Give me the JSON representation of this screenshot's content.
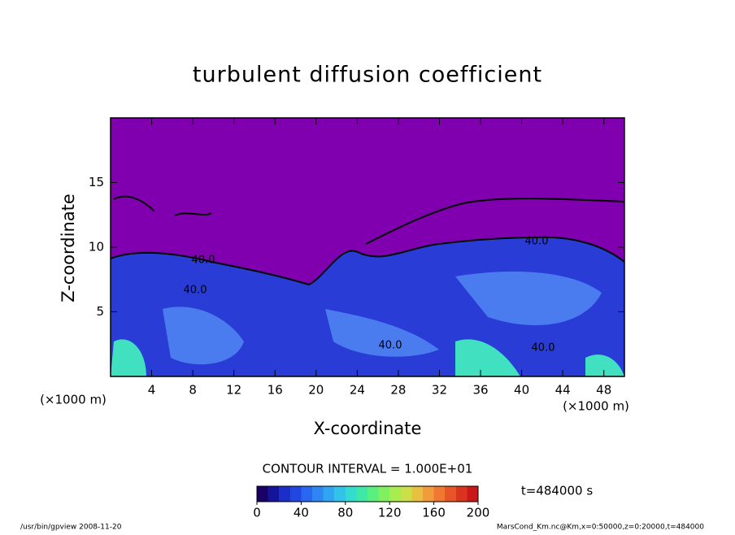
{
  "chart_data": {
    "type": "contour",
    "title": "turbulent diffusion coefficient",
    "x_label": "X-coordinate",
    "y_label": "Z-coordinate",
    "x_unit": "(×1000 m)",
    "y_unit": "(×1000 m)",
    "xlim": [
      0,
      50
    ],
    "xticks": [
      4,
      8,
      12,
      16,
      20,
      24,
      28,
      32,
      36,
      40,
      44,
      48
    ],
    "ylim": [
      0,
      20
    ],
    "yticks": [
      5,
      10,
      15
    ],
    "contour_interval": "CONTOUR INTERVAL = 1.000E+01",
    "contour_labels": [
      "40.0",
      "40.0",
      "40.0",
      "40.0",
      "40.0"
    ],
    "colorbar": {
      "clim": [
        0,
        200
      ],
      "ticks": [
        0,
        40,
        80,
        120,
        160,
        200
      ],
      "colors": [
        "#1a0066",
        "#14149a",
        "#1a2ec8",
        "#2048e0",
        "#2a66f0",
        "#2e86f4",
        "#30a6f0",
        "#30c4e8",
        "#34dcd0",
        "#40e8a8",
        "#5af080",
        "#80f060",
        "#a8ec50",
        "#ccde48",
        "#e6c040",
        "#f09c38",
        "#f07830",
        "#e85428",
        "#d83420",
        "#c81818"
      ]
    },
    "time_label": "t=484000 s",
    "footer_left": "/usr/bin/gpview  2008-11-20",
    "footer_right": "MarsCond_Km.nc@Km,x=0:50000,z=0:20000,t=484000"
  }
}
